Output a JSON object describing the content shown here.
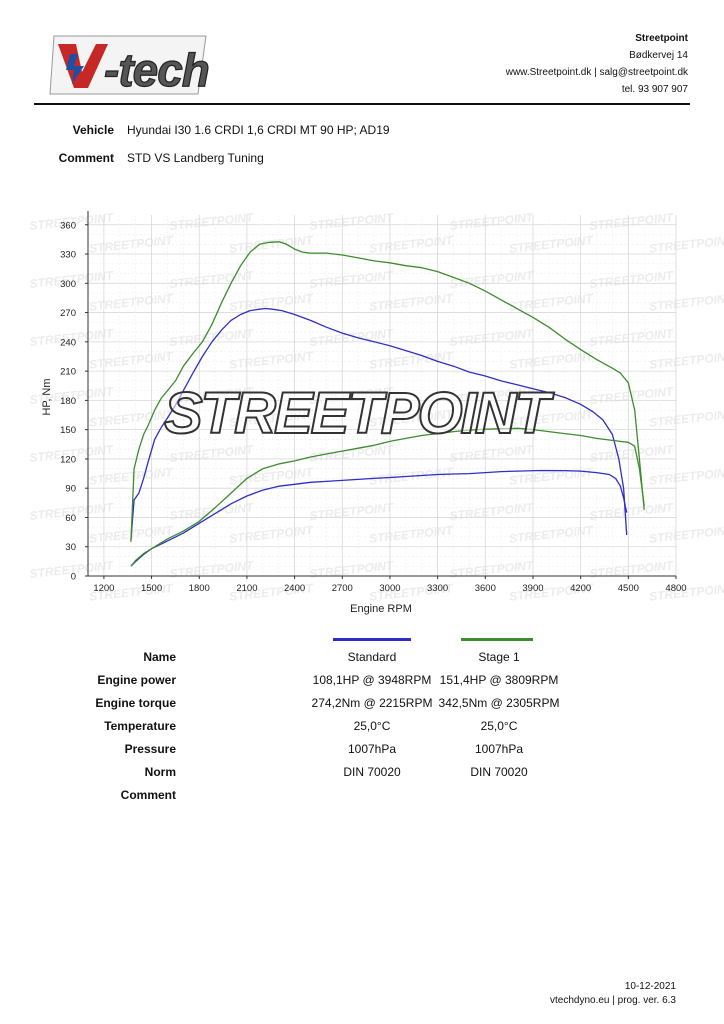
{
  "header": {
    "logo_text": "V-tech",
    "company_name": "Streetpoint",
    "address": "Bødkervej 14",
    "web_email": "www.Streetpoint.dk | salg@streetpoint.dk",
    "phone": "tel. 93 907 907"
  },
  "vehicle": {
    "label": "Vehicle",
    "value": "Hyundai I30 1.6 CRDI 1,6 CRDI MT 90 HP; AD19"
  },
  "comment": {
    "label": "Comment",
    "value": "STD VS Landberg Tuning"
  },
  "watermark": "STREETPOINT",
  "colors": {
    "standard": "#2e2ec4",
    "stage1": "#3d8c2e",
    "grid": "#d8d8d8"
  },
  "chart_data": {
    "type": "line",
    "xlabel": "Engine RPM",
    "ylabel": "HP, Nm",
    "xlim": [
      1100,
      4800
    ],
    "ylim": [
      0,
      370
    ],
    "x_ticks": [
      1200,
      1500,
      1800,
      2100,
      2400,
      2700,
      3000,
      3300,
      3600,
      3900,
      4200,
      4500,
      4800
    ],
    "y_ticks": [
      0,
      30,
      60,
      90,
      120,
      150,
      180,
      210,
      240,
      270,
      300,
      330,
      360
    ],
    "grid": true,
    "series": [
      {
        "name": "Standard",
        "metric": "torque",
        "color": "#2e2ec4",
        "x": [
          1370,
          1390,
          1420,
          1450,
          1480,
          1520,
          1560,
          1600,
          1650,
          1700,
          1760,
          1820,
          1880,
          1940,
          2000,
          2060,
          2120,
          2180,
          2215,
          2260,
          2320,
          2400,
          2500,
          2600,
          2700,
          2800,
          2900,
          3000,
          3100,
          3200,
          3300,
          3400,
          3500,
          3600,
          3700,
          3800,
          3900,
          4000,
          4100,
          4200,
          4280,
          4340,
          4400,
          4440,
          4470,
          4490
        ],
        "y": [
          37,
          78,
          85,
          100,
          118,
          140,
          152,
          162,
          175,
          190,
          208,
          225,
          240,
          252,
          262,
          268,
          272,
          273.5,
          274.2,
          273.5,
          272,
          268,
          262,
          255,
          249,
          244,
          240,
          236,
          231,
          226,
          220,
          215,
          209,
          205,
          200,
          196,
          192,
          188,
          183,
          176,
          168,
          160,
          145,
          120,
          90,
          42
        ]
      },
      {
        "name": "Stage 1",
        "metric": "torque",
        "color": "#3d8c2e",
        "x": [
          1370,
          1390,
          1420,
          1450,
          1480,
          1520,
          1560,
          1600,
          1650,
          1700,
          1760,
          1820,
          1880,
          1940,
          2000,
          2060,
          2120,
          2180,
          2240,
          2305,
          2350,
          2400,
          2450,
          2500,
          2600,
          2700,
          2800,
          2900,
          3000,
          3100,
          3200,
          3300,
          3400,
          3500,
          3600,
          3700,
          3800,
          3900,
          4000,
          4100,
          4200,
          4300,
          4400,
          4450,
          4500,
          4540,
          4570,
          4600
        ],
        "y": [
          35,
          110,
          130,
          145,
          155,
          170,
          182,
          190,
          200,
          215,
          228,
          240,
          258,
          280,
          300,
          318,
          332,
          340,
          342,
          342.5,
          340,
          335,
          332,
          331,
          331,
          329,
          326,
          323,
          321,
          318,
          316,
          312,
          306,
          300,
          292,
          283,
          274,
          265,
          255,
          243,
          232,
          222,
          213,
          208,
          198,
          170,
          120,
          68
        ]
      },
      {
        "name": "Standard",
        "metric": "power",
        "color": "#2e2ec4",
        "x": [
          1370,
          1400,
          1450,
          1500,
          1550,
          1600,
          1700,
          1800,
          1900,
          2000,
          2100,
          2200,
          2300,
          2400,
          2500,
          2600,
          2700,
          2800,
          2900,
          3000,
          3100,
          3200,
          3300,
          3400,
          3500,
          3600,
          3700,
          3800,
          3948,
          4100,
          4200,
          4300,
          4380,
          4420,
          4450,
          4470,
          4490
        ],
        "y": [
          10,
          15,
          22,
          28,
          32,
          36,
          44,
          54,
          64,
          74,
          82,
          88,
          92,
          94,
          96,
          97,
          98,
          99,
          100,
          101,
          102,
          103,
          104,
          104.5,
          105,
          106,
          107,
          107.5,
          108.1,
          108,
          107.5,
          106,
          104,
          100,
          92,
          80,
          65
        ]
      },
      {
        "name": "Stage 1",
        "metric": "power",
        "color": "#3d8c2e",
        "x": [
          1370,
          1400,
          1450,
          1500,
          1550,
          1600,
          1700,
          1800,
          1900,
          2000,
          2100,
          2200,
          2305,
          2400,
          2500,
          2600,
          2700,
          2800,
          2900,
          3000,
          3100,
          3200,
          3300,
          3400,
          3500,
          3600,
          3700,
          3809,
          3900,
          4000,
          4100,
          4200,
          4300,
          4400,
          4450,
          4500,
          4540,
          4570,
          4600
        ],
        "y": [
          10,
          16,
          23,
          28,
          33,
          38,
          46,
          56,
          70,
          85,
          100,
          110,
          115,
          118,
          122,
          125,
          128,
          131,
          134,
          138,
          141,
          144,
          146,
          148,
          149.5,
          150.5,
          151,
          151.4,
          150,
          148,
          146,
          144,
          141,
          139,
          138,
          137,
          133,
          110,
          72
        ]
      }
    ]
  },
  "results": {
    "headers": {
      "label": "Name",
      "standard": "Standard",
      "stage1": "Stage 1"
    },
    "rows": [
      {
        "label": "Engine power",
        "standard": "108,1HP @ 3948RPM",
        "stage1": "151,4HP @ 3809RPM"
      },
      {
        "label": "Engine torque",
        "standard": "274,2Nm @ 2215RPM",
        "stage1": "342,5Nm @ 2305RPM"
      },
      {
        "label": "Temperature",
        "standard": "25,0°C",
        "stage1": "25,0°C"
      },
      {
        "label": "Pressure",
        "standard": "1007hPa",
        "stage1": "1007hPa"
      },
      {
        "label": "Norm",
        "standard": "DIN 70020",
        "stage1": "DIN 70020"
      },
      {
        "label": "Comment",
        "standard": "",
        "stage1": ""
      }
    ]
  },
  "footer": {
    "date": "10-12-2021",
    "program": "vtechdyno.eu | prog. ver. 6.3"
  }
}
